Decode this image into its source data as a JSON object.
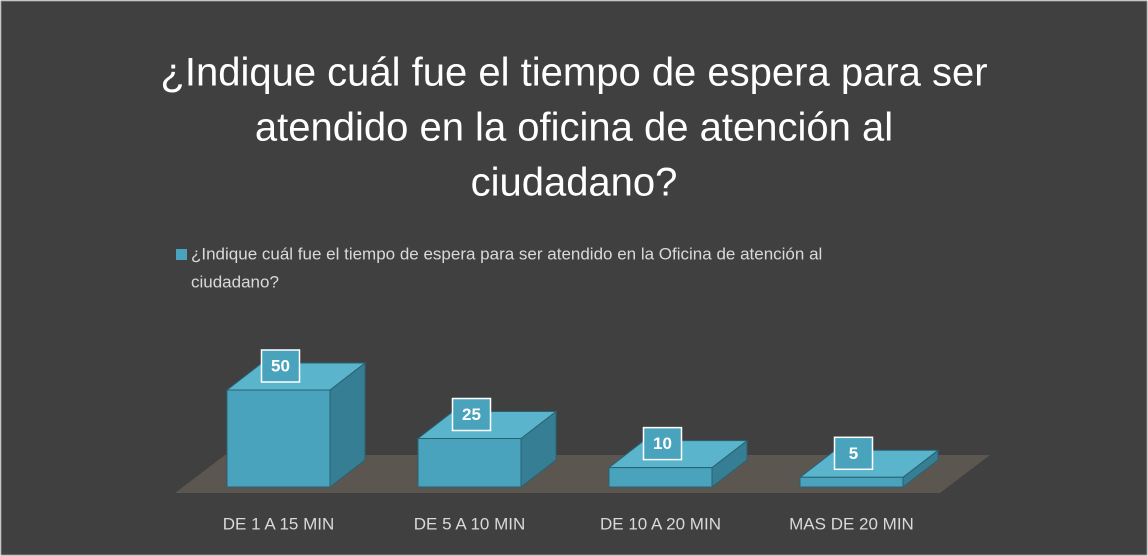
{
  "chart_data": {
    "type": "bar3d",
    "title": [
      "¿Indique cuál fue el tiempo de espera para ser",
      "atendido en la oficina de atención al",
      "ciudadano?"
    ],
    "categories": [
      "DE 1 A 15 MIN",
      "DE 5 A 10 MIN",
      "DE 10 A 20 MIN",
      "MAS DE 20 MIN"
    ],
    "series": [
      {
        "name": [
          "¿Indique cuál fue el tiempo de espera para ser atendido en la Oficina de atención al",
          "ciudadano?"
        ],
        "color": "#4aa3bd",
        "values": [
          50,
          25,
          10,
          5
        ]
      }
    ],
    "legend": "top"
  }
}
